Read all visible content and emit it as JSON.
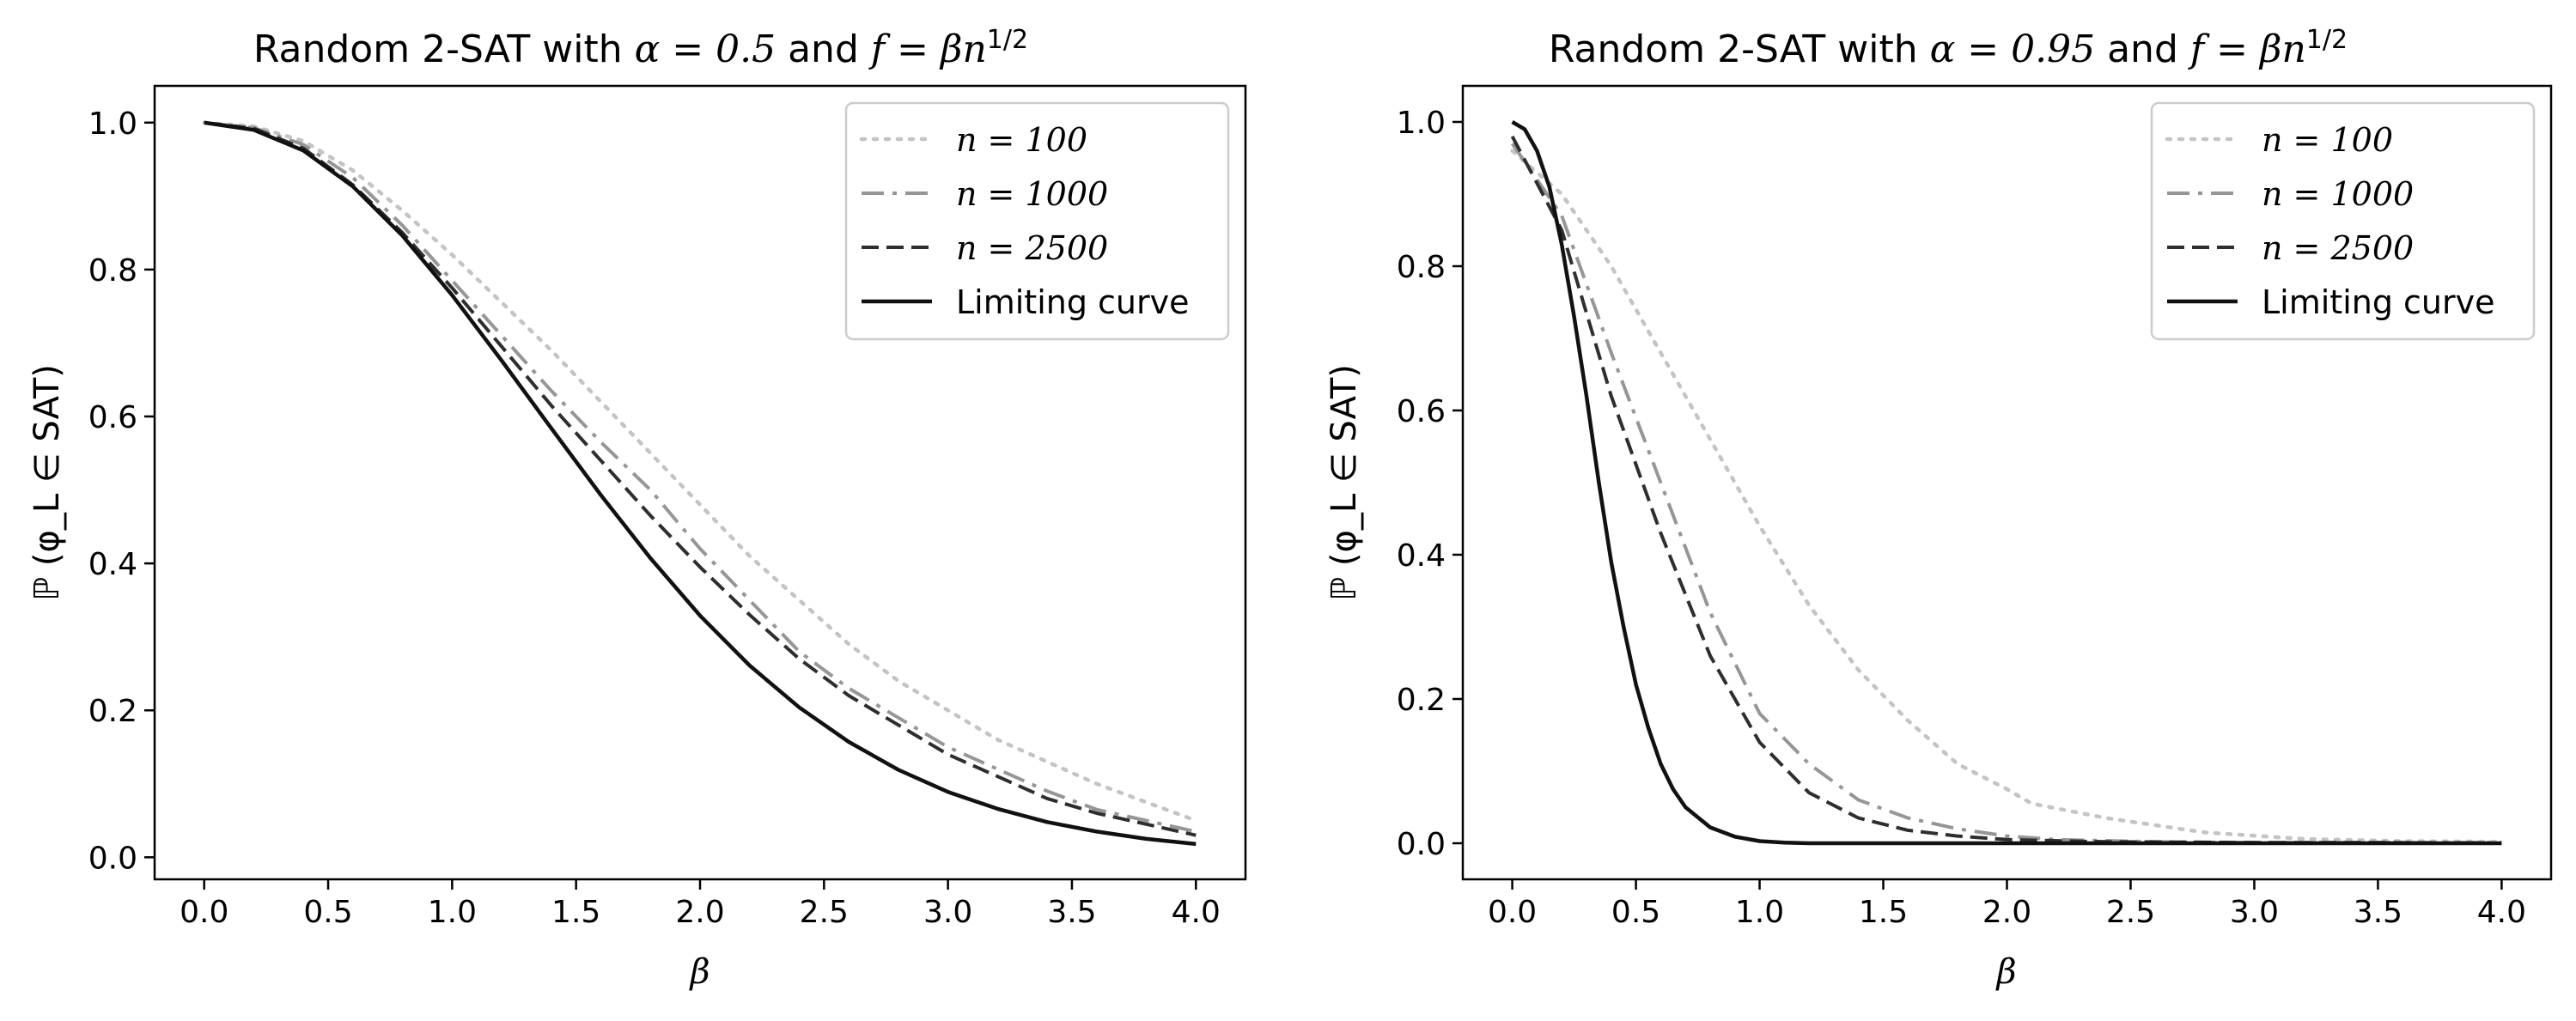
{
  "chart_data": [
    {
      "type": "line",
      "title_prefix": "Random 2-SAT with ",
      "title_alpha": "α = 0.5",
      "title_mid": " and ",
      "title_f": "f = βn",
      "title_exp": "1/2",
      "xlabel": "β",
      "ylabel": "ℙ (φ_L ∈ SAT)",
      "xlim": [
        -0.2,
        4.2
      ],
      "ylim": [
        -0.03,
        1.05
      ],
      "xticks": [
        "0.0",
        "0.5",
        "1.0",
        "1.5",
        "2.0",
        "2.5",
        "3.0",
        "3.5",
        "4.0"
      ],
      "yticks": [
        "0.0",
        "0.2",
        "0.4",
        "0.6",
        "0.8",
        "1.0"
      ],
      "legend_location": "upper right",
      "series": [
        {
          "name": "n = 100",
          "style": "dotted",
          "color": "#c4c4c4",
          "x": [
            0,
            0.2,
            0.4,
            0.6,
            0.8,
            1.0,
            1.2,
            1.4,
            1.6,
            1.8,
            2.0,
            2.2,
            2.4,
            2.6,
            2.8,
            3.0,
            3.2,
            3.4,
            3.6,
            3.8,
            4.0
          ],
          "y": [
            1.0,
            0.995,
            0.975,
            0.935,
            0.88,
            0.82,
            0.755,
            0.69,
            0.62,
            0.55,
            0.48,
            0.41,
            0.35,
            0.29,
            0.24,
            0.2,
            0.16,
            0.13,
            0.1,
            0.075,
            0.05
          ]
        },
        {
          "name": "n = 1000",
          "style": "dashdot",
          "color": "#969696",
          "x": [
            0,
            0.2,
            0.4,
            0.6,
            0.8,
            1.0,
            1.2,
            1.4,
            1.6,
            1.8,
            2.0,
            2.2,
            2.4,
            2.6,
            2.8,
            3.0,
            3.2,
            3.4,
            3.6,
            3.8,
            4.0
          ],
          "y": [
            1.0,
            0.993,
            0.97,
            0.925,
            0.86,
            0.785,
            0.71,
            0.635,
            0.565,
            0.5,
            0.42,
            0.35,
            0.28,
            0.23,
            0.19,
            0.15,
            0.12,
            0.09,
            0.065,
            0.05,
            0.035
          ]
        },
        {
          "name": "n = 2500",
          "style": "dashed",
          "color": "#2e2e2e",
          "x": [
            0,
            0.2,
            0.4,
            0.6,
            0.8,
            1.0,
            1.2,
            1.4,
            1.6,
            1.8,
            2.0,
            2.2,
            2.4,
            2.6,
            2.8,
            3.0,
            3.2,
            3.4,
            3.6,
            3.8,
            4.0
          ],
          "y": [
            1.0,
            0.992,
            0.965,
            0.915,
            0.85,
            0.775,
            0.695,
            0.615,
            0.54,
            0.465,
            0.395,
            0.33,
            0.27,
            0.22,
            0.18,
            0.14,
            0.11,
            0.08,
            0.06,
            0.045,
            0.03
          ]
        },
        {
          "name": "Limiting curve",
          "style": "solid",
          "color": "#111111",
          "x": [
            0,
            0.2,
            0.4,
            0.6,
            0.8,
            1.0,
            1.2,
            1.4,
            1.6,
            1.8,
            2.0,
            2.2,
            2.4,
            2.6,
            2.8,
            3.0,
            3.2,
            3.4,
            3.6,
            3.8,
            4.0
          ],
          "y": [
            1.0,
            0.99,
            0.962,
            0.913,
            0.846,
            0.765,
            0.676,
            0.584,
            0.493,
            0.407,
            0.329,
            0.261,
            0.204,
            0.157,
            0.119,
            0.089,
            0.066,
            0.048,
            0.035,
            0.025,
            0.018
          ]
        }
      ]
    },
    {
      "type": "line",
      "title_prefix": "Random 2-SAT with ",
      "title_alpha": "α = 0.95",
      "title_mid": " and ",
      "title_f": "f = βn",
      "title_exp": "1/2",
      "xlabel": "β",
      "ylabel": "ℙ (φ_L ∈ SAT)",
      "xlim": [
        -0.2,
        4.2
      ],
      "ylim": [
        -0.05,
        1.05
      ],
      "xticks": [
        "0.0",
        "0.5",
        "1.0",
        "1.5",
        "2.0",
        "2.5",
        "3.0",
        "3.5",
        "4.0"
      ],
      "yticks": [
        "0.0",
        "0.2",
        "0.4",
        "0.6",
        "0.8",
        "1.0"
      ],
      "legend_location": "upper right",
      "series": [
        {
          "name": "n = 100",
          "style": "dotted",
          "color": "#c4c4c4",
          "x": [
            0,
            0.2,
            0.4,
            0.6,
            0.8,
            1.0,
            1.2,
            1.4,
            1.6,
            1.8,
            2.0,
            2.1,
            2.4,
            2.8,
            3.2,
            3.6,
            4.0
          ],
          "y": [
            0.96,
            0.9,
            0.8,
            0.68,
            0.56,
            0.44,
            0.33,
            0.24,
            0.17,
            0.11,
            0.075,
            0.055,
            0.035,
            0.015,
            0.006,
            0.003,
            0.002
          ]
        },
        {
          "name": "n = 1000",
          "style": "dashdot",
          "color": "#969696",
          "x": [
            0,
            0.2,
            0.4,
            0.6,
            0.8,
            1.0,
            1.2,
            1.4,
            1.6,
            1.8,
            2.0,
            2.2,
            2.6,
            3.0,
            3.5,
            4.0
          ],
          "y": [
            0.97,
            0.87,
            0.68,
            0.5,
            0.32,
            0.18,
            0.11,
            0.06,
            0.035,
            0.02,
            0.01,
            0.005,
            0.002,
            0.001,
            0.001,
            0.001
          ]
        },
        {
          "name": "n = 2500",
          "style": "dashed",
          "color": "#2e2e2e",
          "x": [
            0,
            0.2,
            0.4,
            0.6,
            0.8,
            1.0,
            1.2,
            1.4,
            1.6,
            1.8,
            2.0,
            2.4,
            3.0,
            3.5,
            4.0
          ],
          "y": [
            0.98,
            0.85,
            0.62,
            0.43,
            0.26,
            0.14,
            0.07,
            0.035,
            0.018,
            0.01,
            0.005,
            0.002,
            0.001,
            0.001,
            0.0
          ]
        },
        {
          "name": "Limiting curve",
          "style": "solid",
          "color": "#111111",
          "x": [
            0,
            0.05,
            0.1,
            0.15,
            0.2,
            0.25,
            0.3,
            0.35,
            0.4,
            0.45,
            0.5,
            0.55,
            0.6,
            0.65,
            0.7,
            0.8,
            0.9,
            1.0,
            1.1,
            1.2,
            1.5,
            2.0,
            3.0,
            4.0
          ],
          "y": [
            1.0,
            0.99,
            0.96,
            0.91,
            0.83,
            0.73,
            0.62,
            0.5,
            0.39,
            0.3,
            0.22,
            0.16,
            0.11,
            0.075,
            0.05,
            0.022,
            0.009,
            0.003,
            0.001,
            0.0,
            0.0,
            0.0,
            0.0,
            0.0
          ]
        }
      ]
    }
  ]
}
